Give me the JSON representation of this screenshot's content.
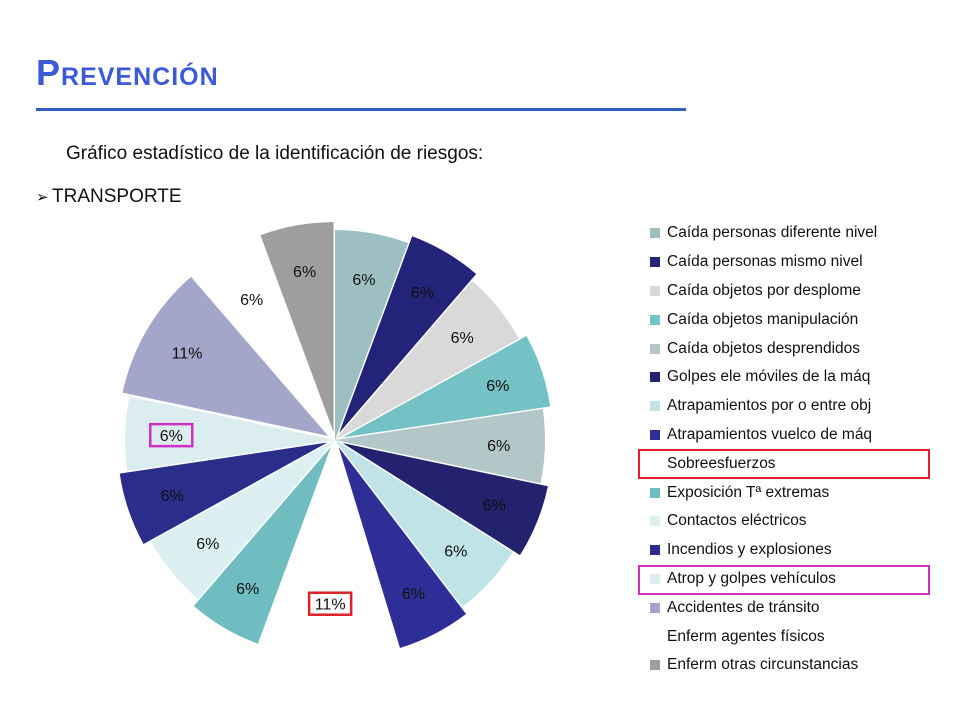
{
  "slide": {
    "title": "Prevención",
    "subtitle": "Gráfico estadístico de la identificación de riesgos:",
    "section_label": "TRANSPORTE",
    "section_bullet_icon": "arrow-bullet-icon",
    "accent_color": "#3a5ad8",
    "rule_color": "#2f5fbf"
  },
  "chart_data": {
    "type": "pie",
    "title": "",
    "legend_position": "right",
    "categories": [
      "Caída personas diferente nivel",
      "Caída personas mismo nivel",
      "Caída objetos por desplome",
      "Caída objetos manipulación",
      "Caída objetos desprendidos",
      "Golpes ele móviles de la máq",
      "Atrapamientos por o entre obj",
      "Atrapamientos vuelco de máq",
      "Sobreesfuerzos",
      "Exposición Tª extremas",
      "Contactos eléctricos",
      "Incendios y explosiones",
      "Atrop y golpes vehículos",
      "Accidentes de tránsito",
      "Enferm agentes físicos",
      "Enferm otras circunstancias"
    ],
    "values": [
      6,
      6,
      6,
      6,
      6,
      6,
      6,
      6,
      11,
      6,
      6,
      6,
      6,
      11,
      6,
      6
    ],
    "data_labels": [
      "6%",
      "6%",
      "6%",
      "6%",
      "6%",
      "6%",
      "6%",
      "6%",
      "11%",
      "6%",
      "6%",
      "6%",
      "6%",
      "11%",
      "6%",
      "6%"
    ],
    "colors": [
      "#9dbfc2",
      "#23237a",
      "#d9d9d9",
      "#74c2c6",
      "#b3c6c8",
      "#22226e",
      "#bfe3e6",
      "#2e2e96",
      "#ffffff",
      "#6fbdc0",
      "#dcf0f2",
      "#2c2c8a",
      "#dcedf0",
      "#a3a6c8",
      "#ffffff",
      "#9e9e9e"
    ],
    "exploded": [
      false,
      true,
      false,
      true,
      false,
      true,
      false,
      true,
      false,
      true,
      false,
      true,
      false,
      true,
      false,
      true
    ],
    "highlighted_legend": {
      "Sobreesfuerzos": "#e0202a",
      "Atrop y golpes vehículos": "#d030c8"
    },
    "highlighted_labels": {
      "Sobreesfuerzos": "#e0202a",
      "Atrop y golpes vehículos": "#d030c8"
    }
  }
}
